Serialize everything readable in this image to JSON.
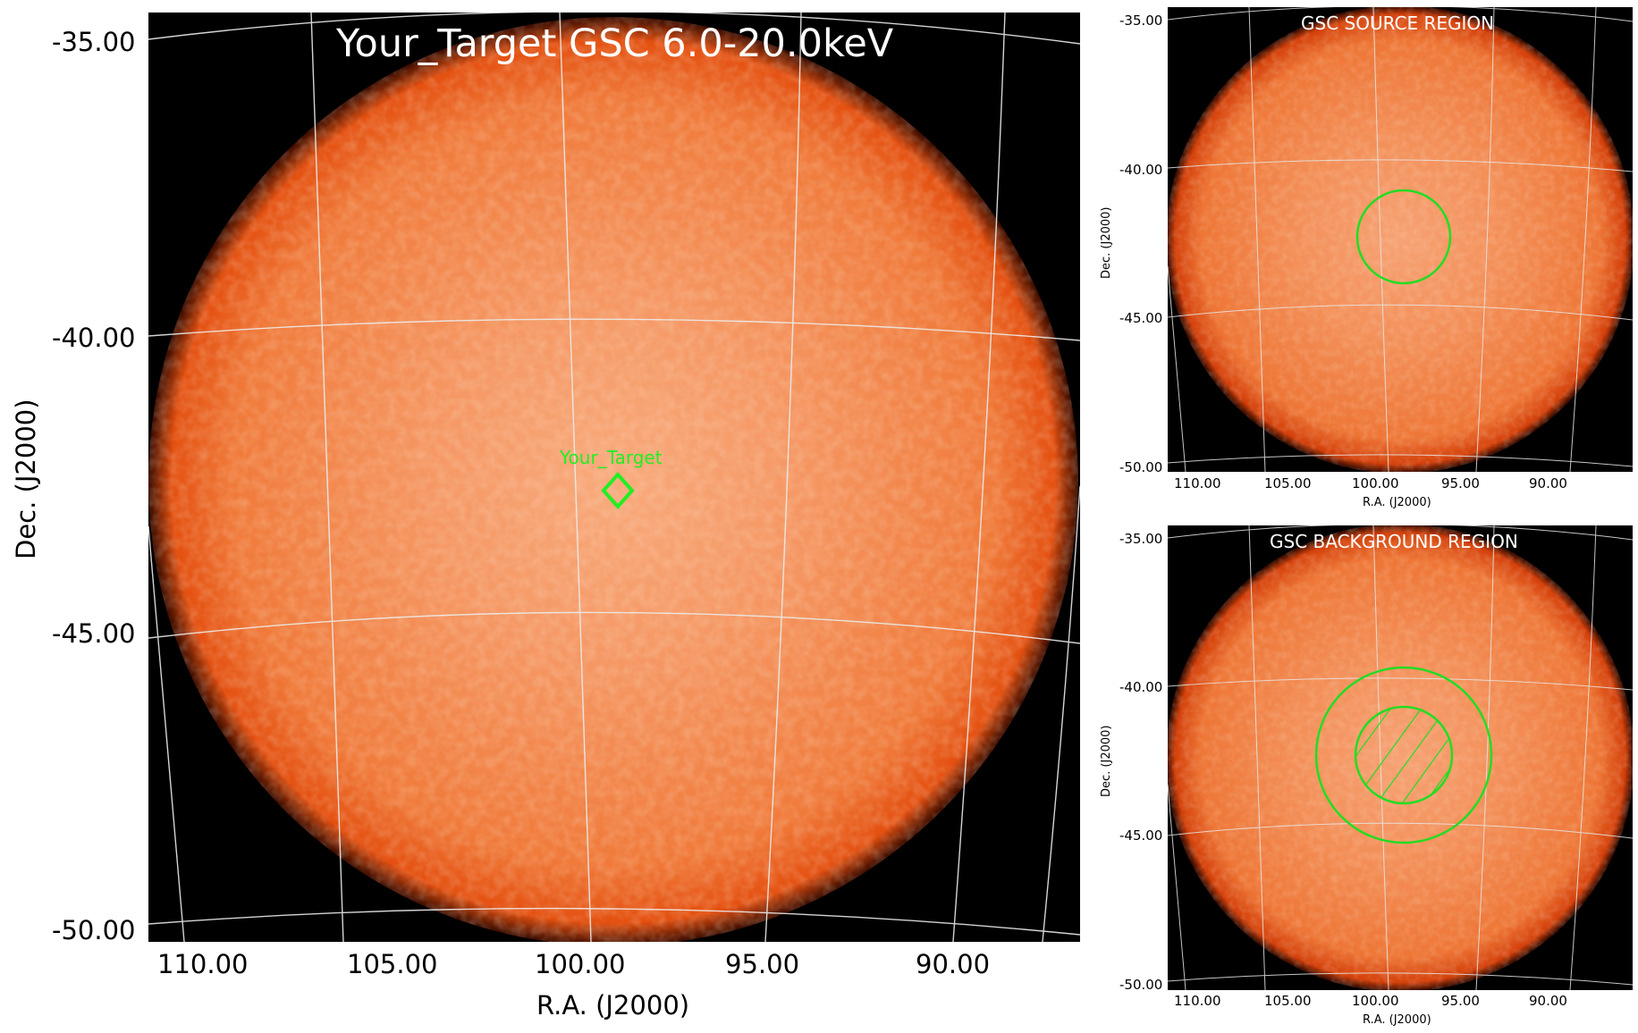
{
  "main": {
    "title": "Your_Target GSC 6.0-20.0keV",
    "marker_label": "Your_Target",
    "dec_ticks": [
      "-35.00",
      "-40.00",
      "-45.00",
      "-50.00"
    ],
    "ra_ticks": [
      "110.00",
      "105.00",
      "100.00",
      "95.00",
      "90.00"
    ],
    "xlabel": "R.A. (J2000)",
    "ylabel": "Dec. (J2000)"
  },
  "source_panel": {
    "title": "GSC SOURCE REGION",
    "dec_ticks": [
      "-35.00",
      "-40.00",
      "-45.00",
      "-50.00"
    ],
    "ra_ticks": [
      "110.00",
      "105.00",
      "100.00",
      "95.00",
      "90.00"
    ],
    "xlabel": "R.A. (J2000)",
    "ylabel": "Dec. (J2000)"
  },
  "background_panel": {
    "title": "GSC BACKGROUND REGION",
    "dec_ticks": [
      "-35.00",
      "-40.00",
      "-45.00",
      "-50.00"
    ],
    "ra_ticks": [
      "110.00",
      "105.00",
      "100.00",
      "95.00",
      "90.00"
    ],
    "xlabel": "R.A. (J2000)",
    "ylabel": "Dec. (J2000)"
  },
  "colors": {
    "image_bg": "#000000",
    "disk_center": "#f6a071",
    "disk_mid": "#f2803f",
    "disk_edge": "#e65312",
    "grid": "#e8e8e8",
    "region": "#22dd22",
    "title": "#ffffff"
  }
}
